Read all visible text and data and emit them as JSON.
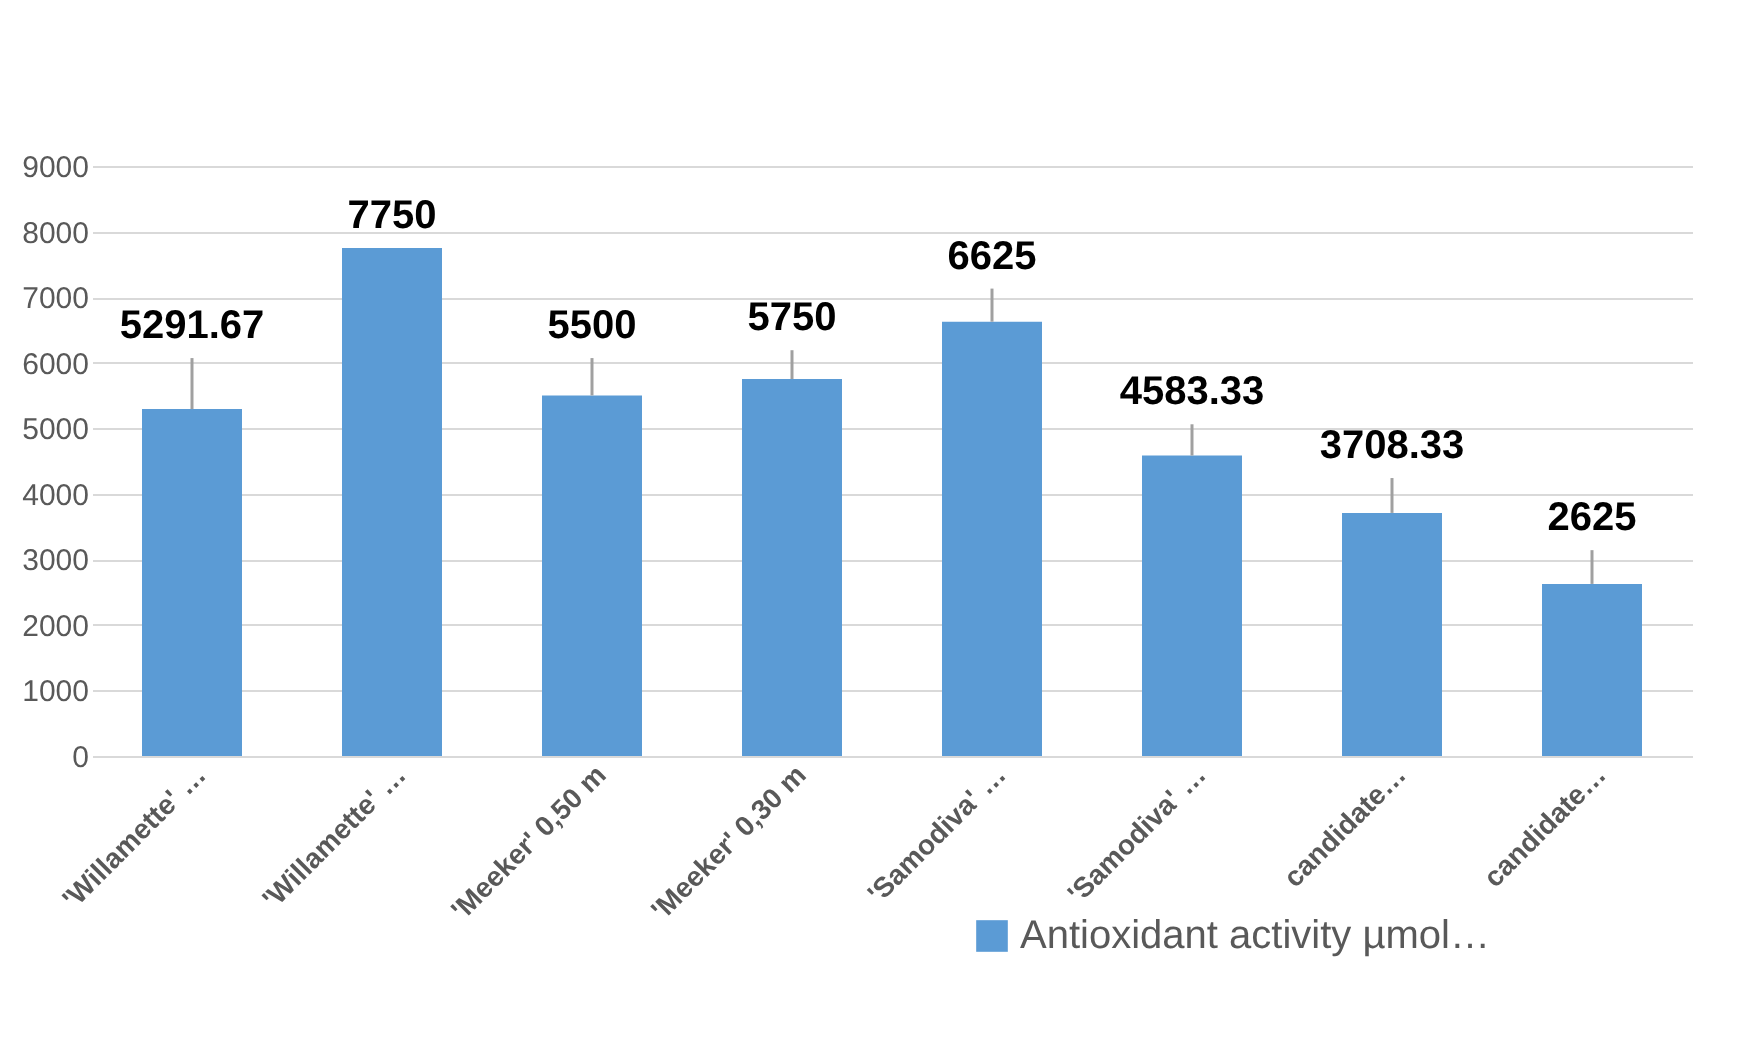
{
  "chart_data": {
    "type": "bar",
    "categories": [
      "'Willamette' …",
      "'Willamette' …",
      "'Meeker' 0,50 m",
      "'Meeker' 0,30 m",
      "'Samodiva' …",
      "'Samodiva' …",
      "candidate…",
      "candidate…"
    ],
    "series": [
      {
        "name": "Antioxidant activity µmol…",
        "color": "#5b9bd5",
        "values": [
          5291.67,
          7750,
          5500,
          5750,
          6625,
          4583.33,
          3708.33,
          2625
        ],
        "errors": [
          [
            5291.67,
            6070
          ],
          null,
          [
            5500,
            6070
          ],
          [
            5750,
            6190
          ],
          [
            6625,
            7130
          ],
          [
            4583.33,
            5060
          ],
          [
            3708.33,
            4240
          ],
          [
            2625,
            3140
          ]
        ]
      }
    ],
    "ylim": [
      0,
      9000
    ],
    "yticks": [
      0,
      1000,
      2000,
      3000,
      4000,
      5000,
      6000,
      7000,
      8000,
      9000
    ],
    "grid": "y",
    "legend": "bottom right",
    "data_labels": true
  }
}
